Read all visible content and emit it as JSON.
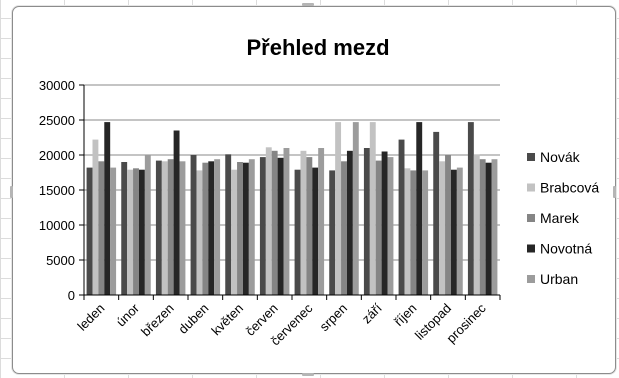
{
  "chart_data": {
    "type": "bar",
    "title": "Přehled mezd",
    "xlabel": "",
    "ylabel": "",
    "ylim": [
      0,
      30000
    ],
    "yticks": [
      0,
      5000,
      10000,
      15000,
      20000,
      25000,
      30000
    ],
    "ytick_labels": [
      "0",
      "5000",
      "10000",
      "15000",
      "20000",
      "25000",
      "30000"
    ],
    "grid": true,
    "legend_position": "right",
    "categories": [
      "leden",
      "únor",
      "březen",
      "duben",
      "květen",
      "červen",
      "červenec",
      "srpen",
      "září",
      "říjen",
      "listopad",
      "prosinec"
    ],
    "series": [
      {
        "name": "Novák",
        "color": "#4a4a4a",
        "values": [
          18200,
          19000,
          19200,
          20000,
          20100,
          19700,
          17900,
          17800,
          21000,
          22200,
          23300,
          24700
        ]
      },
      {
        "name": "Brabcová",
        "color": "#c2c2c2",
        "values": [
          22200,
          17900,
          19100,
          17800,
          17900,
          21100,
          20600,
          24700,
          24700,
          18100,
          19100,
          20100
        ]
      },
      {
        "name": "Marek",
        "color": "#858585",
        "values": [
          19100,
          18100,
          19400,
          18900,
          19000,
          20600,
          19700,
          19100,
          19200,
          17800,
          20000,
          19400
        ]
      },
      {
        "name": "Novotná",
        "color": "#262626",
        "values": [
          24700,
          17900,
          23500,
          19100,
          18900,
          19600,
          18200,
          20600,
          20500,
          24700,
          17900,
          18900
        ]
      },
      {
        "name": "Urban",
        "color": "#9c9c9c",
        "values": [
          18200,
          20000,
          19100,
          19400,
          19400,
          21000,
          21000,
          24700,
          19700,
          17800,
          18200,
          19400
        ]
      }
    ]
  }
}
